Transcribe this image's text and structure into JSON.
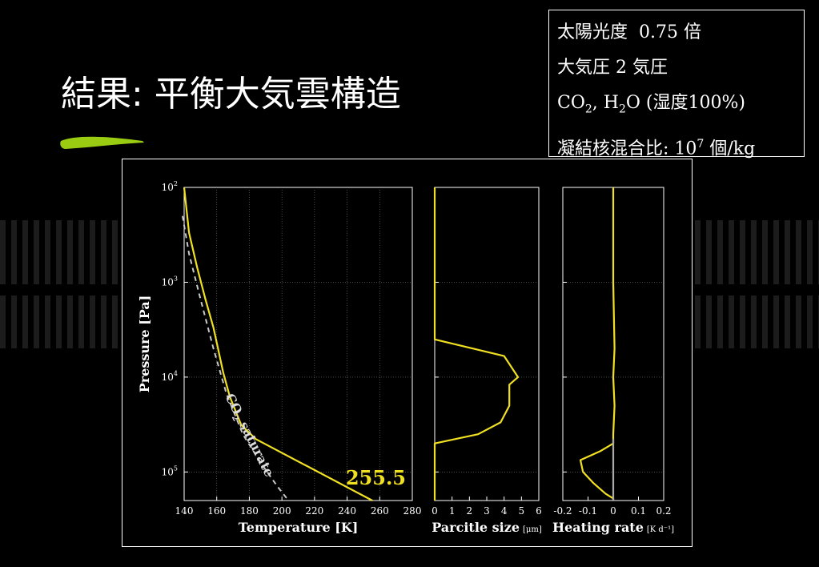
{
  "slide": {
    "title": "結果: 平衡大気雲構造",
    "accent_color": "#9acd12",
    "conditions": {
      "solar": {
        "label": "太陽光度",
        "value": "0.75 倍"
      },
      "pressure": {
        "label": "大気圧",
        "value": "2 気圧"
      },
      "gases": {
        "co": "CO",
        "co_sub": "2",
        "sep": ", H",
        "h_sub": "2",
        "rest": "O (湿度100%)"
      },
      "nuclei": {
        "label": "凝結核混合比: 10",
        "exp": "7",
        "unit": " 個/kg"
      }
    }
  },
  "chart_data": [
    {
      "type": "line",
      "xlabel": "Temperature [K]",
      "ylabel": "Pressure [Pa]",
      "xlim": [
        140,
        280
      ],
      "xticks": [
        "140",
        "160",
        "180",
        "200",
        "220",
        "240",
        "260",
        "280"
      ],
      "ylim": [
        100,
        200000
      ],
      "yscale": "log",
      "yticks": [
        {
          "base": "10",
          "exp": "2"
        },
        {
          "base": "10",
          "exp": "3"
        },
        {
          "base": "10",
          "exp": "4"
        },
        {
          "base": "10",
          "exp": "5"
        }
      ],
      "grid": true,
      "annotation": "255.5",
      "series": [
        {
          "style": "solid",
          "color": "#f0e022",
          "x": [
            140,
            143,
            148,
            153,
            158,
            164,
            168,
            175,
            184,
            255.5
          ],
          "y": [
            100,
            300,
            700,
            1500,
            3000,
            9000,
            16000,
            32000,
            45000,
            200000
          ]
        },
        {
          "name": "CO₂ saturate",
          "style": "dashed",
          "color": "#c8c8c8",
          "x": [
            139,
            143,
            150,
            158,
            166,
            176,
            187,
            197,
            204
          ],
          "y": [
            200,
            500,
            1500,
            5000,
            15000,
            40000,
            80000,
            140000,
            200000
          ]
        }
      ],
      "series_label": {
        "base": "CO",
        "sub": "2",
        "rest": " saturate"
      }
    },
    {
      "type": "line",
      "xlabel": "Parcitle size",
      "xunit": "[μm]",
      "xlim": [
        0,
        6
      ],
      "xticks": [
        "0",
        "1",
        "2",
        "3",
        "4",
        "5",
        "6"
      ],
      "ylim": [
        100,
        200000
      ],
      "yscale": "log",
      "series": [
        {
          "color": "#f0e022",
          "x": [
            0,
            0,
            0,
            4,
            4.8,
            4.3,
            4.3,
            3.8,
            2.5,
            0,
            0,
            0
          ],
          "y": [
            100,
            1000,
            4000,
            6000,
            10000,
            12000,
            20000,
            30000,
            40000,
            50000,
            100000,
            200000
          ]
        }
      ]
    },
    {
      "type": "line",
      "xlabel": "Heating rate",
      "xunit": "[K d⁻¹]",
      "xlim": [
        -0.2,
        0.2
      ],
      "xticks": [
        "-0.2",
        "-0.1",
        "0",
        "0.1",
        "0.2"
      ],
      "ylim": [
        100,
        200000
      ],
      "yscale": "log",
      "series": [
        {
          "color": "#f0e022",
          "x": [
            0,
            0,
            0.005,
            0,
            0.005,
            0,
            0,
            -0.05,
            -0.13,
            -0.12,
            -0.08,
            -0.03,
            0,
            0
          ],
          "y": [
            100,
            1000,
            5000,
            10000,
            20000,
            40000,
            50000,
            60000,
            75000,
            100000,
            130000,
            170000,
            190000,
            200000
          ]
        },
        {
          "color": "#aaaaaa",
          "x": [
            0,
            0
          ],
          "y": [
            45000,
            200000
          ]
        }
      ]
    }
  ]
}
